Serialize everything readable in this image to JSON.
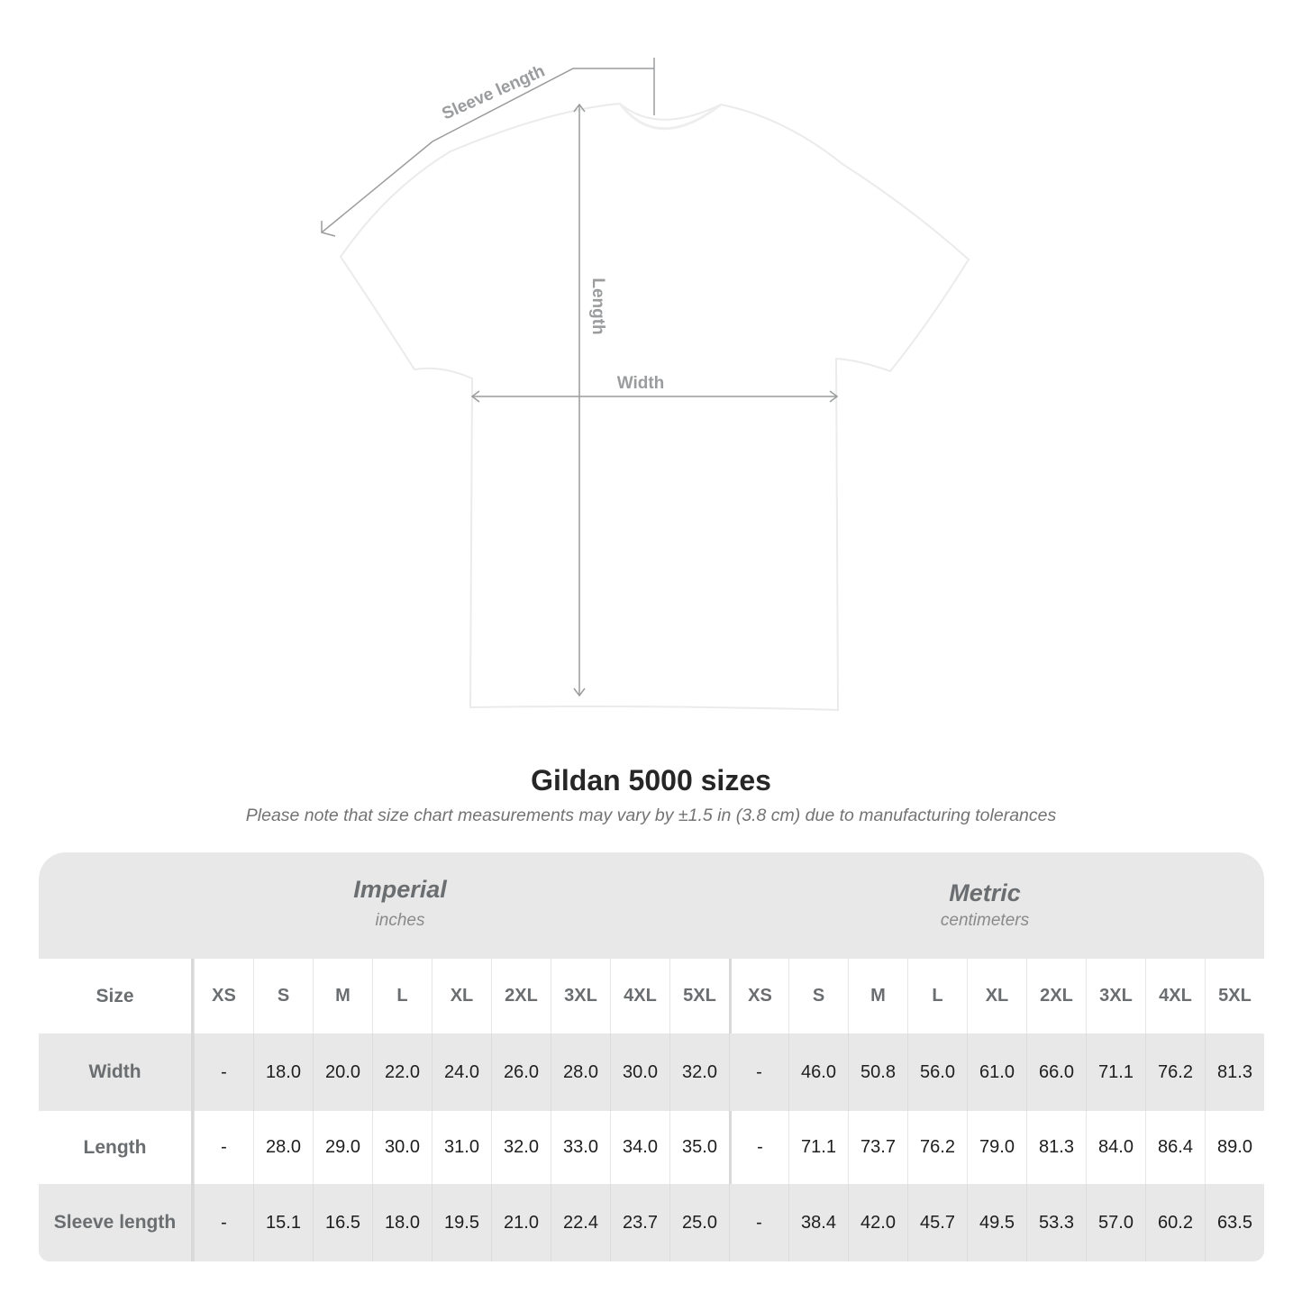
{
  "diagram": {
    "sleeve_label": "Sleeve length",
    "length_label": "Length",
    "width_label": "Width",
    "line_color": "#9a9c9e",
    "shirt_color": "#ffffff"
  },
  "title": "Gildan 5000 sizes",
  "subtitle": "Please note that size chart measurements may vary by ±1.5 in (3.8 cm) due to manufacturing tolerances",
  "systems": [
    {
      "name": "Imperial",
      "unit": "inches"
    },
    {
      "name": "Metric",
      "unit": "centimeters"
    }
  ],
  "table": {
    "size_header": "Size",
    "sizes": [
      "XS",
      "S",
      "M",
      "L",
      "XL",
      "2XL",
      "3XL",
      "4XL",
      "5XL"
    ],
    "rows": [
      {
        "label": "Width",
        "imperial": [
          "-",
          "18.0",
          "20.0",
          "22.0",
          "24.0",
          "26.0",
          "28.0",
          "30.0",
          "32.0"
        ],
        "metric": [
          "-",
          "46.0",
          "50.8",
          "56.0",
          "61.0",
          "66.0",
          "71.1",
          "76.2",
          "81.3"
        ]
      },
      {
        "label": "Length",
        "imperial": [
          "-",
          "28.0",
          "29.0",
          "30.0",
          "31.0",
          "32.0",
          "33.0",
          "34.0",
          "35.0"
        ],
        "metric": [
          "-",
          "71.1",
          "73.7",
          "76.2",
          "79.0",
          "81.3",
          "84.0",
          "86.4",
          "89.0"
        ]
      },
      {
        "label": "Sleeve length",
        "imperial": [
          "-",
          "15.1",
          "16.5",
          "18.0",
          "19.5",
          "21.0",
          "22.4",
          "23.7",
          "25.0"
        ],
        "metric": [
          "-",
          "38.4",
          "42.0",
          "45.7",
          "49.5",
          "53.3",
          "57.0",
          "60.2",
          "63.5"
        ]
      }
    ]
  }
}
